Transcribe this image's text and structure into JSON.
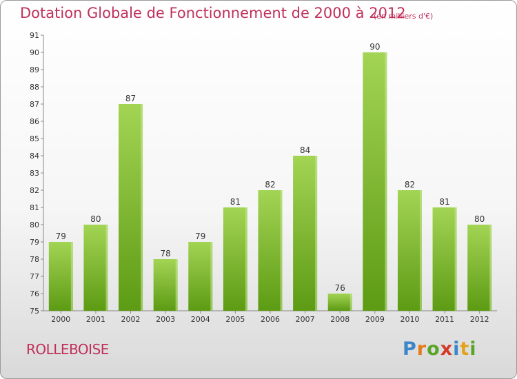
{
  "header": {
    "title": "Dotation Globale de Fonctionnement de 2000 à 2012",
    "unit": "(en milliers d'€)"
  },
  "footer": {
    "commune": "ROLLEBOISE",
    "logo": "Proxiti"
  },
  "colors": {
    "title": "#c0305a",
    "bar_light": "#a3d454",
    "bar_dark": "#5d9b14",
    "axis": "#888888"
  },
  "chart_data": {
    "type": "bar",
    "title": "Dotation Globale de Fonctionnement de 2000 à 2012",
    "subtitle": "(en milliers d'€)",
    "xlabel": "",
    "ylabel": "",
    "categories": [
      "2000",
      "2001",
      "2002",
      "2003",
      "2004",
      "2005",
      "2006",
      "2007",
      "2008",
      "2009",
      "2010",
      "2011",
      "2012"
    ],
    "values": [
      79,
      80,
      87,
      78,
      79,
      81,
      82,
      84,
      76,
      90,
      82,
      81,
      80
    ],
    "ylim": [
      75,
      91
    ],
    "yticks": [
      75,
      76,
      77,
      78,
      79,
      80,
      81,
      82,
      83,
      84,
      85,
      86,
      87,
      88,
      89,
      90,
      91
    ],
    "grid": false,
    "data_labels": true
  }
}
